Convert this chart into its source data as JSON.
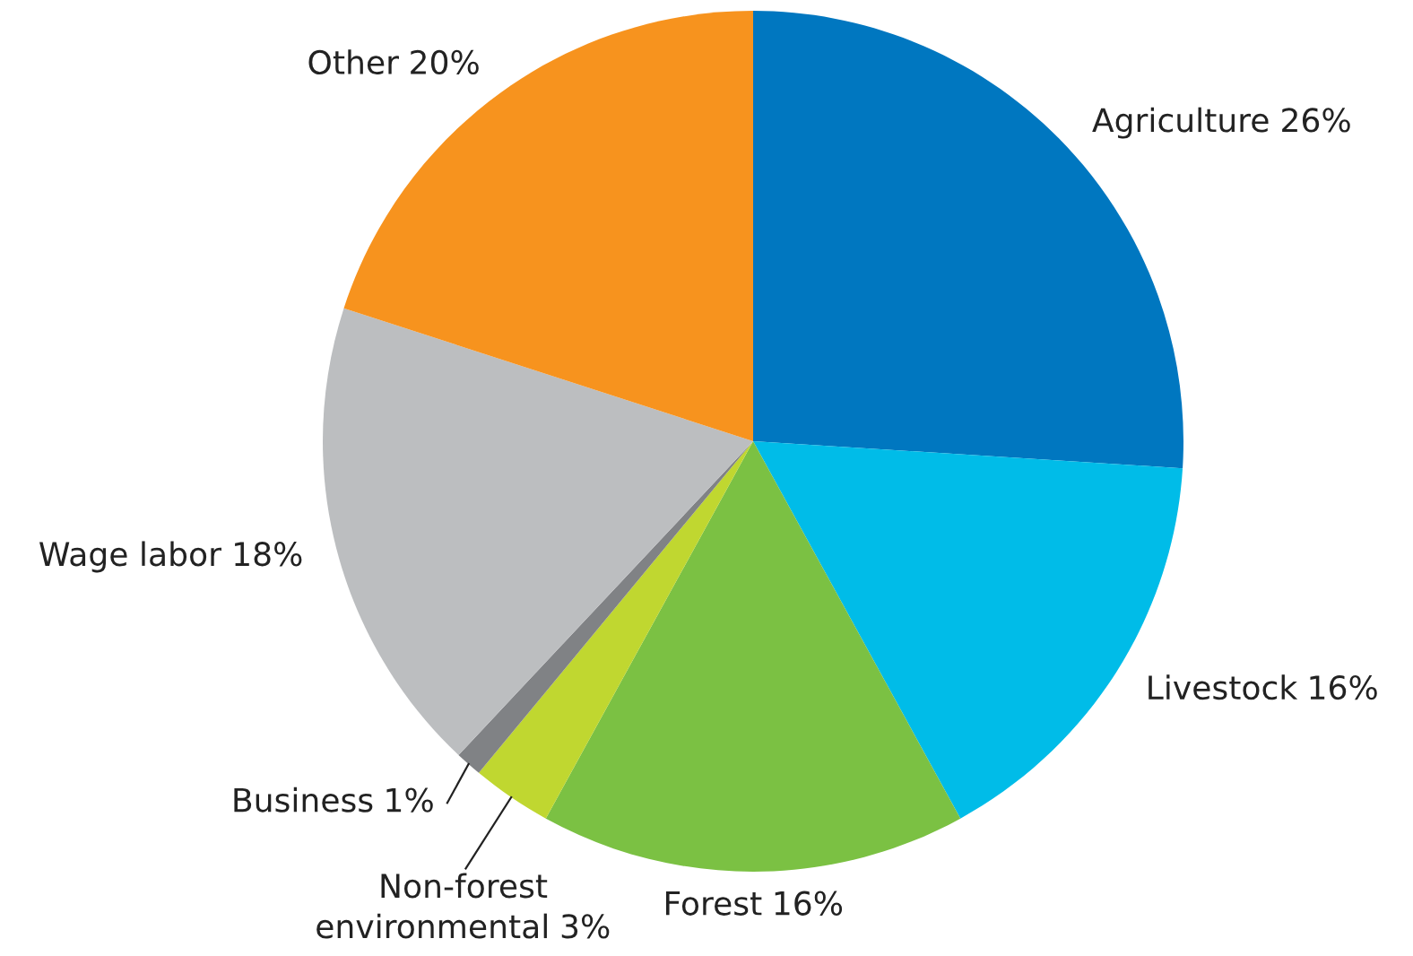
{
  "chart_data": {
    "type": "pie",
    "categories": [
      "Agriculture",
      "Livestock",
      "Forest",
      "Non-forest environmental",
      "Business",
      "Wage labor",
      "Other"
    ],
    "values": [
      26,
      16,
      16,
      3,
      1,
      18,
      20
    ],
    "value_labels": [
      "26%",
      "16%",
      "16%",
      "3%",
      "1%",
      "18%",
      "20%"
    ],
    "colors": [
      "#0077c0",
      "#00bce8",
      "#7bc143",
      "#c0d730",
      "#808285",
      "#bcbec0",
      "#f7931e"
    ]
  }
}
